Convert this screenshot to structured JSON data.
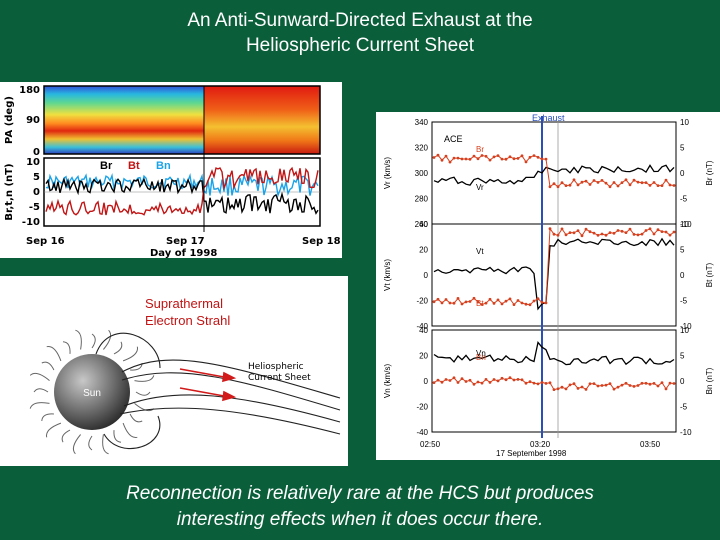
{
  "title": {
    "line1": "An Anti-Sunward-Directed Exhaust at the",
    "line2": "Heliospheric Current Sheet"
  },
  "caption": {
    "line1": "Reconnection is relatively rare at the HCS but produces",
    "line2": "interesting effects when it does occur there."
  },
  "pa_panel": {
    "top_ylabel": "PA (deg)",
    "top_ticks": [
      "180",
      "90",
      "0"
    ],
    "bottom_ylabel": "Br,t,n (nT)",
    "bottom_ticks": [
      "10",
      "5",
      "0",
      "-5",
      "-10"
    ],
    "legend": [
      "Br",
      "Bt",
      "Bn"
    ],
    "x_ticks": [
      "Sep 16",
      "Sep 17",
      "Sep 18"
    ],
    "x_label": "Day of 1998"
  },
  "sun_panel": {
    "strahl_line1": "Suprathermal",
    "strahl_line2": "Electron Strahl",
    "hcs_line1": "Heliospheric",
    "hcs_line2": "Current Sheet",
    "sun_label": "Sun"
  },
  "ace_panel": {
    "exhaust_label": "Exhaust",
    "spacecraft": "ACE",
    "x_ticks": [
      "02:50",
      "03:20",
      "03:50"
    ],
    "date_label": "17 September 1998",
    "panels": [
      {
        "left_ticks": [
          "340",
          "320",
          "300",
          "280",
          "260"
        ],
        "right_ticks": [
          "10",
          "5",
          "0",
          "-5",
          "-10"
        ],
        "left_label": "Vr (km/s)",
        "right_label": "Br (nT)",
        "b_label": "Br",
        "v_label": "Vr"
      },
      {
        "left_ticks": [
          "40",
          "20",
          "0",
          "-20",
          "-40"
        ],
        "right_ticks": [
          "10",
          "5",
          "0",
          "-5",
          "-10"
        ],
        "left_label": "Vt (km/s)",
        "right_label": "Bt (nT)",
        "b_label": "Bt",
        "v_label": "Vt"
      },
      {
        "left_ticks": [
          "40",
          "20",
          "0",
          "-20",
          "-40"
        ],
        "right_ticks": [
          "10",
          "5",
          "0",
          "-5",
          "-10"
        ],
        "left_label": "Vn (km/s)",
        "right_label": "Bn (nT)",
        "b_label": "Bn",
        "v_label": "Vn"
      }
    ]
  },
  "colors": {
    "background": "#0b5e3a",
    "v_trace": "#000000",
    "b_trace": "#d6401e",
    "exhaust_line": "#2a4fb8",
    "br_trace": "#000000",
    "bt_trace": "#c21414",
    "bn_trace": "#1aa3e8"
  }
}
